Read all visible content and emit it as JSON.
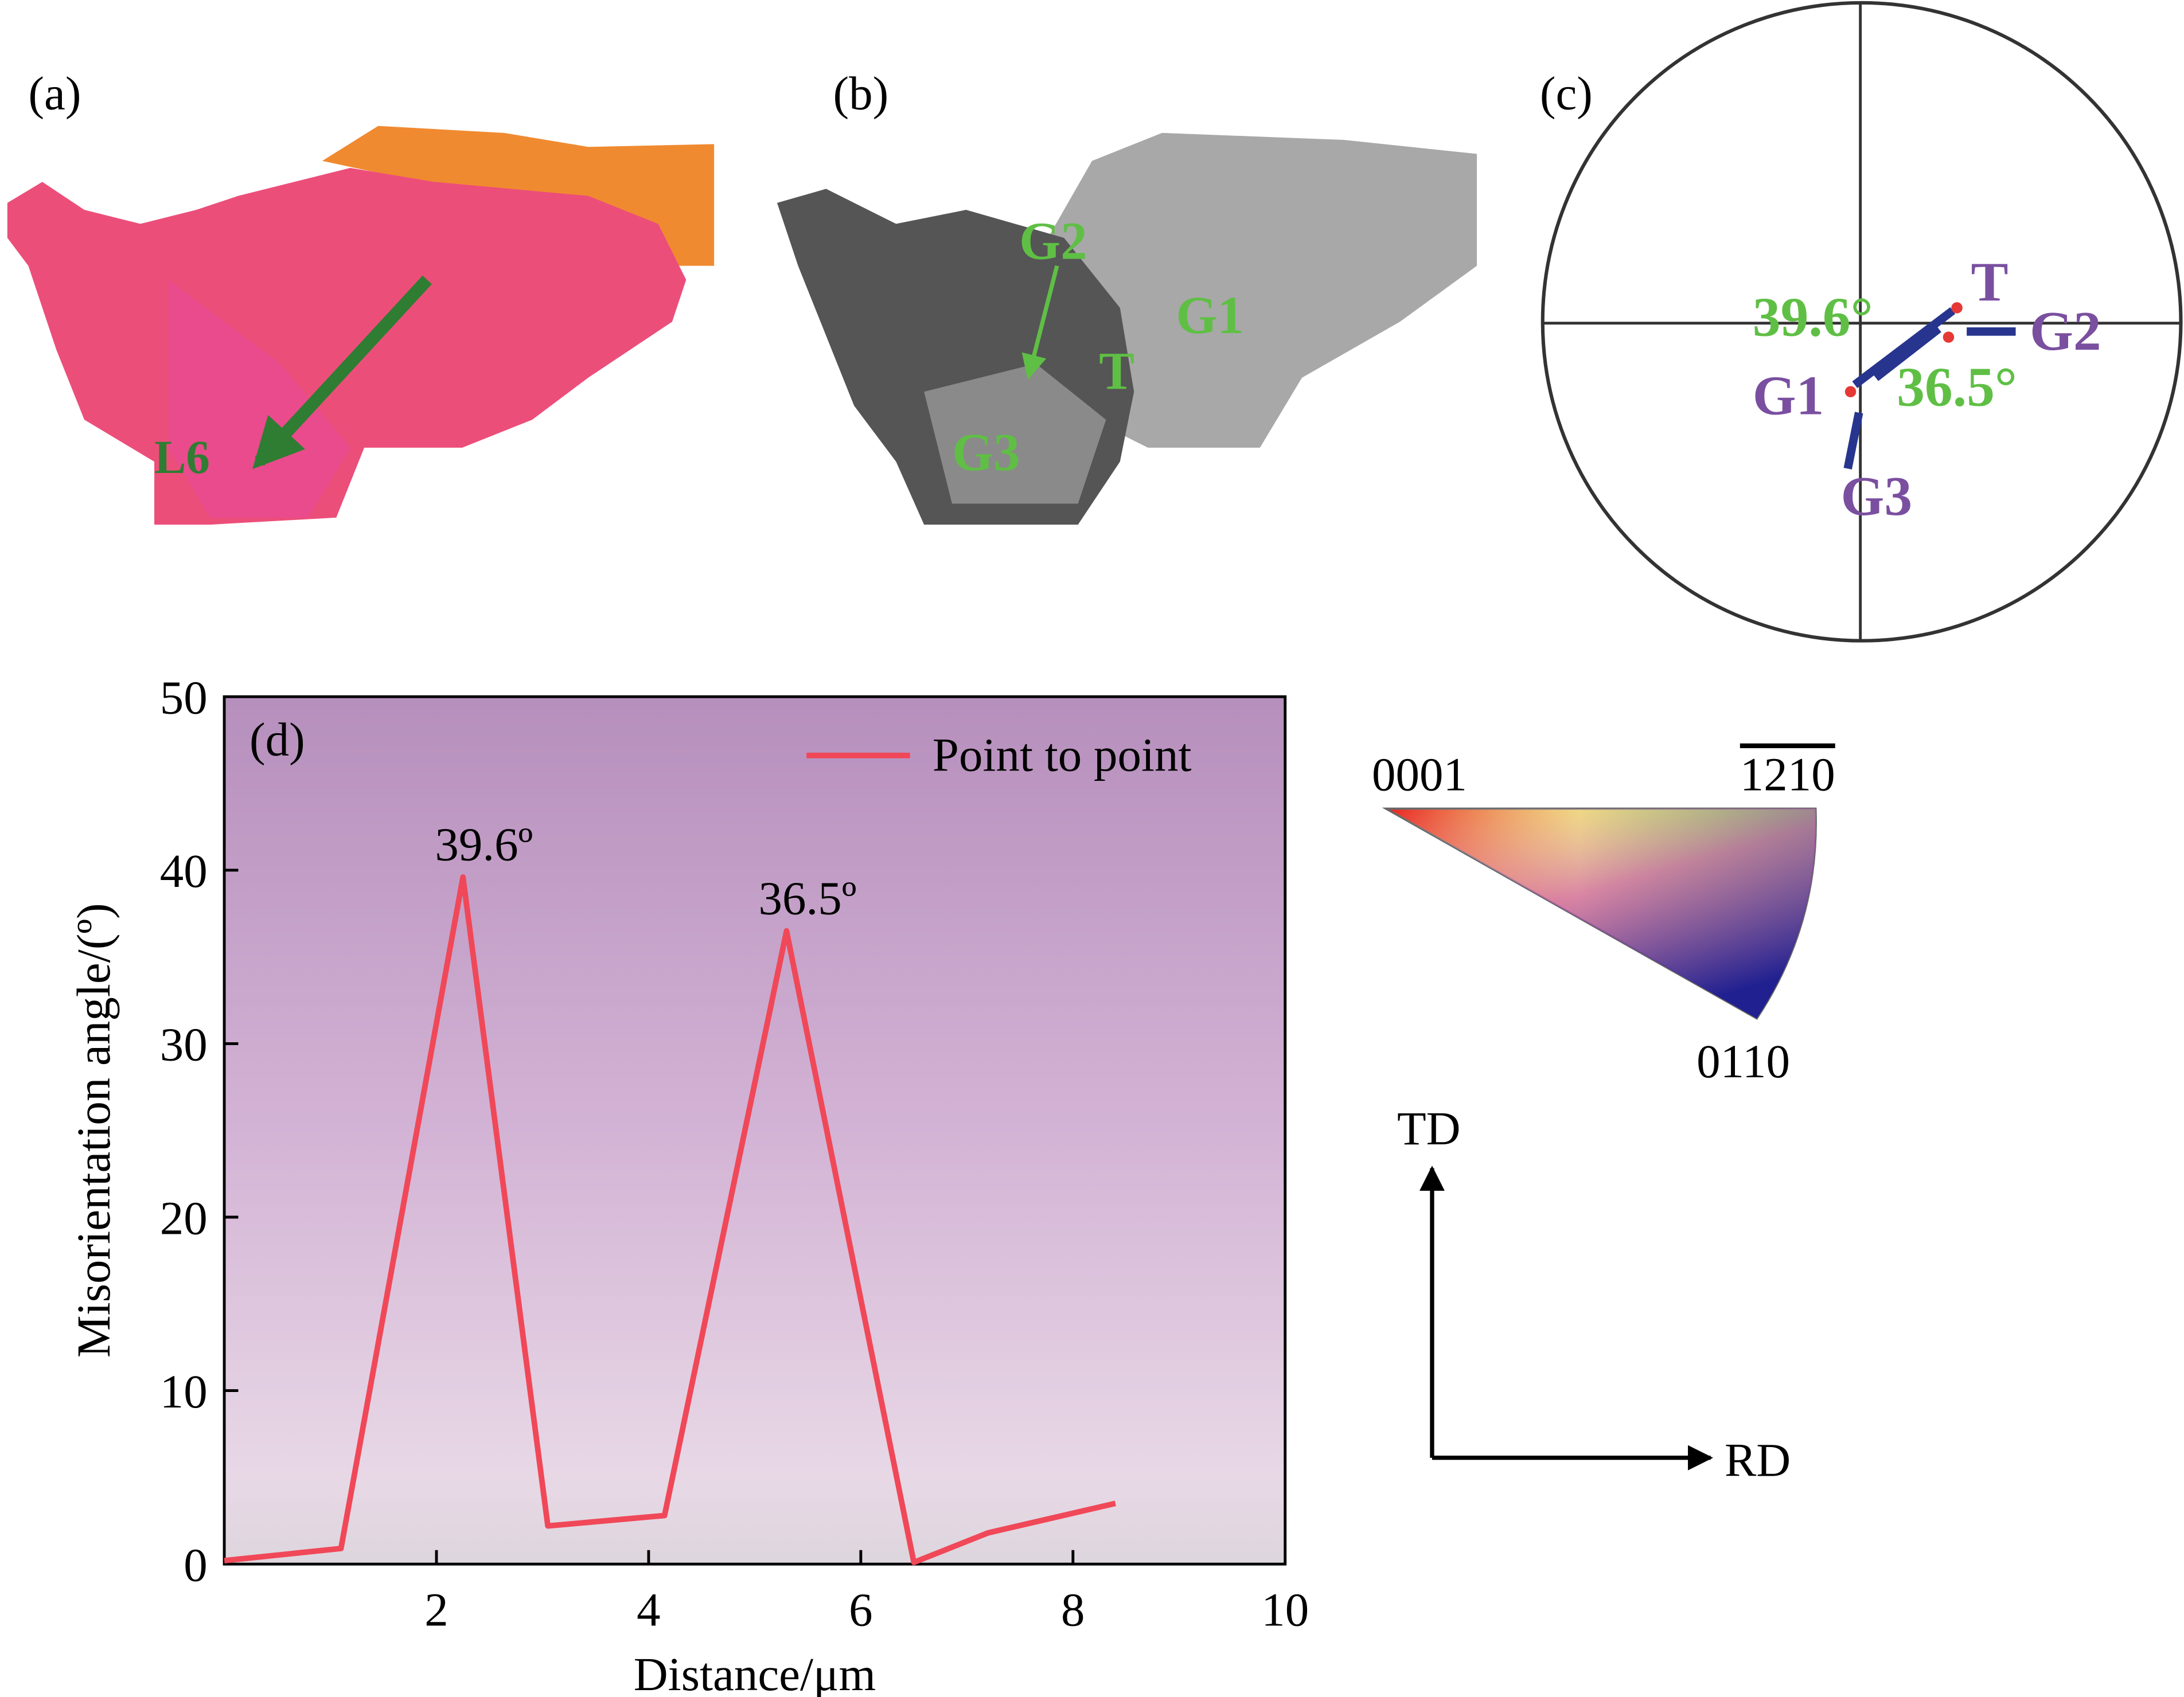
{
  "panels": {
    "a": {
      "label": "(a)",
      "line_label": "L6"
    },
    "b": {
      "label": "(b)",
      "grains": [
        "G2",
        "G1",
        "T",
        "G3"
      ]
    },
    "c": {
      "label": "(c)",
      "angle1": "39.6°",
      "angle2": "36.5°",
      "points": [
        "T",
        "G2",
        "G1",
        "G3"
      ]
    },
    "ipf": {
      "corner_0001": "0001",
      "corner_1210": "1210",
      "corner_0110": "0110"
    },
    "axes": {
      "td": "TD",
      "rd": "RD"
    }
  },
  "colors": {
    "line": "#f04858",
    "grain_label": "#5fbf45",
    "point_label": "#7a4fa0",
    "arrow": "#27358f"
  },
  "chart_data": {
    "type": "line",
    "panel_label": "(d)",
    "xlabel": "Distance/μm",
    "ylabel": "Misorientation angle/(º)",
    "xlim": [
      0,
      10
    ],
    "ylim": [
      0,
      50
    ],
    "xticks": [
      "2",
      "4",
      "6",
      "8",
      "10"
    ],
    "yticks": [
      "0",
      "10",
      "20",
      "30",
      "40",
      "50"
    ],
    "legend": "Point to point",
    "legend_position": "top-right",
    "series": [
      {
        "name": "Point to point",
        "x": [
          0,
          1.1,
          2.25,
          3.05,
          4.15,
          5.3,
          6.5,
          7.2,
          8.4
        ],
        "y": [
          0.2,
          0.9,
          39.6,
          2.2,
          2.8,
          36.5,
          0.1,
          1.8,
          3.5
        ]
      }
    ],
    "annotations": [
      {
        "x": 2.25,
        "y": 39.6,
        "text": "39.6º"
      },
      {
        "x": 5.3,
        "y": 36.5,
        "text": "36.5º"
      }
    ]
  }
}
